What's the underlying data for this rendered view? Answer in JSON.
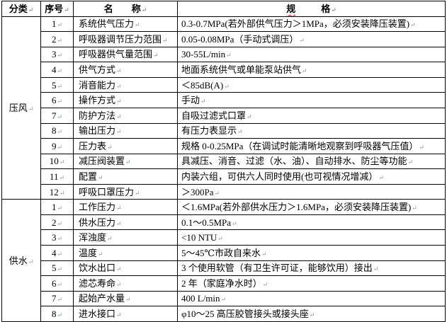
{
  "colors": {
    "background": "#ffffff",
    "border": "#000000",
    "text": "#000000",
    "paragraph_mark": "#8a94a8",
    "spellcheck_squiggle": "#ff0000"
  },
  "marks": {
    "paragraph": "↵"
  },
  "header": {
    "category": "分类",
    "seq": "序号",
    "name": "名　　称",
    "spec_first": "规",
    "spec_second": "格"
  },
  "sections": [
    {
      "category": "压风",
      "rows": [
        {
          "seq": "1",
          "name": "系统供气压力",
          "spec": "0.3-0.7MPa(若外部供气压力＞1MPa，必须安装降压装置)"
        },
        {
          "seq": "2",
          "name": "呼吸器调节压力范围",
          "spec": "0.05-0.08MPa（手动式调压）"
        },
        {
          "seq": "3",
          "name": "呼吸器供气量范围",
          "spec": "30-55L/min"
        },
        {
          "seq": "4",
          "name": "供气方式",
          "spec": "地面系统供气或单能泵站供气"
        },
        {
          "seq": "5",
          "name": "消音能力",
          "spec": "＜85dB(A)"
        },
        {
          "seq": "6",
          "name": "操作方式",
          "spec": "手动"
        },
        {
          "seq": "7",
          "name": "防护方法",
          "spec": "自吸过滤式口罩"
        },
        {
          "seq": "8",
          "name": "输出压力",
          "spec": "有压力表显示"
        },
        {
          "seq": "9",
          "name": "压力表",
          "spec": "规格 0-0.25MPa（在调试时能清晰地观察到呼吸器气压值）"
        },
        {
          "seq": "10",
          "name": "减压阀装置",
          "spec": "具减压、消音、过滤（水、油）、自动排水、防尘等功能"
        },
        {
          "seq": "11",
          "name": "配置",
          "spec": "内装六组，可供六人同时使用(也可视情况增减）"
        },
        {
          "seq": "12",
          "name": "呼吸口罩压力",
          "spec": "＞300Pa"
        }
      ]
    },
    {
      "category": "供水",
      "rows": [
        {
          "seq": "1",
          "name": "工作压力",
          "spec": "＜1.6MPa(若外部供水压力＞1.6MPa，必须安装降压装置)"
        },
        {
          "seq": "2",
          "name": "供水压力",
          "spec": "0.1～0.5MPa"
        },
        {
          "seq": "3",
          "name": "浑浊度",
          "spec": "<10 NTU"
        },
        {
          "seq": "4",
          "name": "温度",
          "spec": "5～45℃市政自来水"
        },
        {
          "seq": "5",
          "name": "饮水出口",
          "spec": "3 个使用软管（有卫生许可证，能够饮用）接出"
        },
        {
          "seq": "6",
          "name": "滤芯寿命",
          "spec": "2 年（家庭净水时）"
        },
        {
          "seq": "7",
          "name": "起始产水量",
          "spec": "400 L/min"
        },
        {
          "seq": "8",
          "name": "进水接口",
          "spec": "φ10～25 高压胶管接头或接头座"
        }
      ]
    }
  ]
}
